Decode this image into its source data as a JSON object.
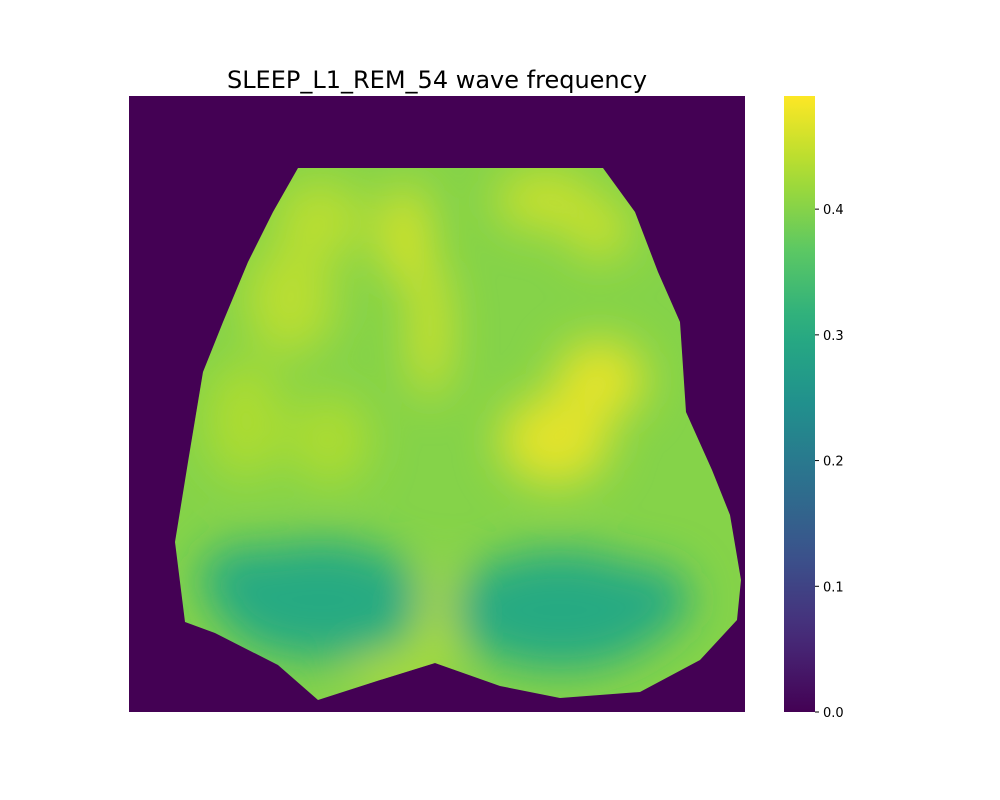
{
  "chart_data": {
    "type": "heatmap",
    "title": "SLEEP_L1_REM_54 wave frequency",
    "xlabel": "",
    "ylabel": "",
    "grid": false,
    "axes_visible": false,
    "colormap": "viridis",
    "background_value": 0.0,
    "value_range": [
      0.0,
      0.49
    ],
    "colorbar": {
      "position": "right",
      "ticks": [
        0.0,
        0.1,
        0.2,
        0.3,
        0.4
      ],
      "tick_labels": [
        "0.0",
        "0.1",
        "0.2",
        "0.3",
        "0.4"
      ]
    },
    "regions": [
      {
        "name": "outside mask",
        "value": 0.0
      },
      {
        "name": "anterior midline band",
        "value": 0.46
      },
      {
        "name": "frontal left",
        "value": 0.44
      },
      {
        "name": "frontal right",
        "value": 0.45
      },
      {
        "name": "central right",
        "value": 0.47
      },
      {
        "name": "central left",
        "value": 0.43
      },
      {
        "name": "lateral rim",
        "value": 0.4
      },
      {
        "name": "posterior left lobe",
        "value": 0.3
      },
      {
        "name": "posterior right lobe",
        "value": 0.3
      },
      {
        "name": "posterior midline gap",
        "value": 0.44
      }
    ]
  }
}
